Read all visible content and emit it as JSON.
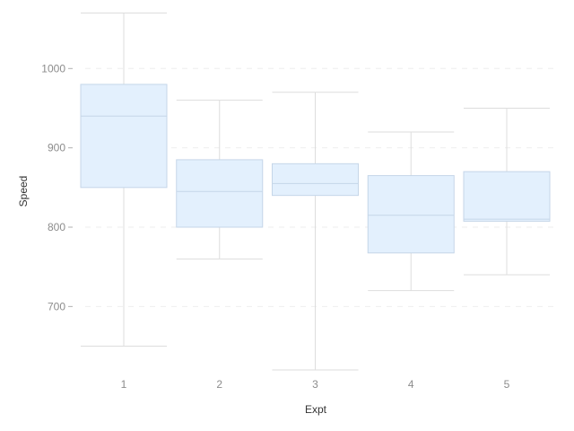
{
  "chart_data": {
    "type": "box",
    "xlabel": "Expt",
    "ylabel": "Speed",
    "categories": [
      "1",
      "2",
      "3",
      "4",
      "5"
    ],
    "ylim": [
      620,
      1070
    ],
    "yticks": [
      700,
      800,
      900,
      1000
    ],
    "grid": "horizontal dashed",
    "boxes": [
      {
        "category": "1",
        "min": 650,
        "q1": 850,
        "median": 940,
        "q3": 980,
        "max": 1070
      },
      {
        "category": "2",
        "min": 760,
        "q1": 800,
        "median": 845,
        "q3": 885,
        "max": 960
      },
      {
        "category": "3",
        "min": 620,
        "q1": 840,
        "median": 855,
        "q3": 880,
        "max": 970
      },
      {
        "category": "4",
        "min": 720,
        "q1": 767.5,
        "median": 815,
        "q3": 865,
        "max": 920
      },
      {
        "category": "5",
        "min": 740,
        "q1": 807.5,
        "median": 810,
        "q3": 870,
        "max": 950
      }
    ],
    "colors": {
      "box_fill": "#e3f0fd",
      "box_stroke": "#c5d6e8",
      "whisker": "#dddddd",
      "grid": "#eeeeee",
      "tick_label": "#8c8c8c",
      "axis_title": "#333333"
    }
  }
}
